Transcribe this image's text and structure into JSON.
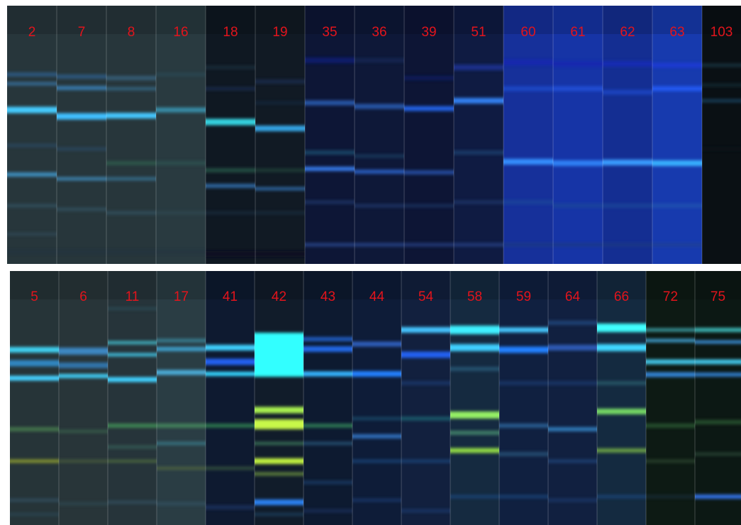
{
  "panels": [
    {
      "lanes": [
        "2",
        "7",
        "8",
        "16",
        "18",
        "19",
        "35",
        "36",
        "39",
        "51",
        "60",
        "61",
        "62",
        "63",
        "103"
      ]
    },
    {
      "lanes": [
        "5",
        "6",
        "11",
        "17",
        "41",
        "42",
        "43",
        "44",
        "54",
        "58",
        "59",
        "64",
        "66",
        "72",
        "75"
      ]
    }
  ]
}
